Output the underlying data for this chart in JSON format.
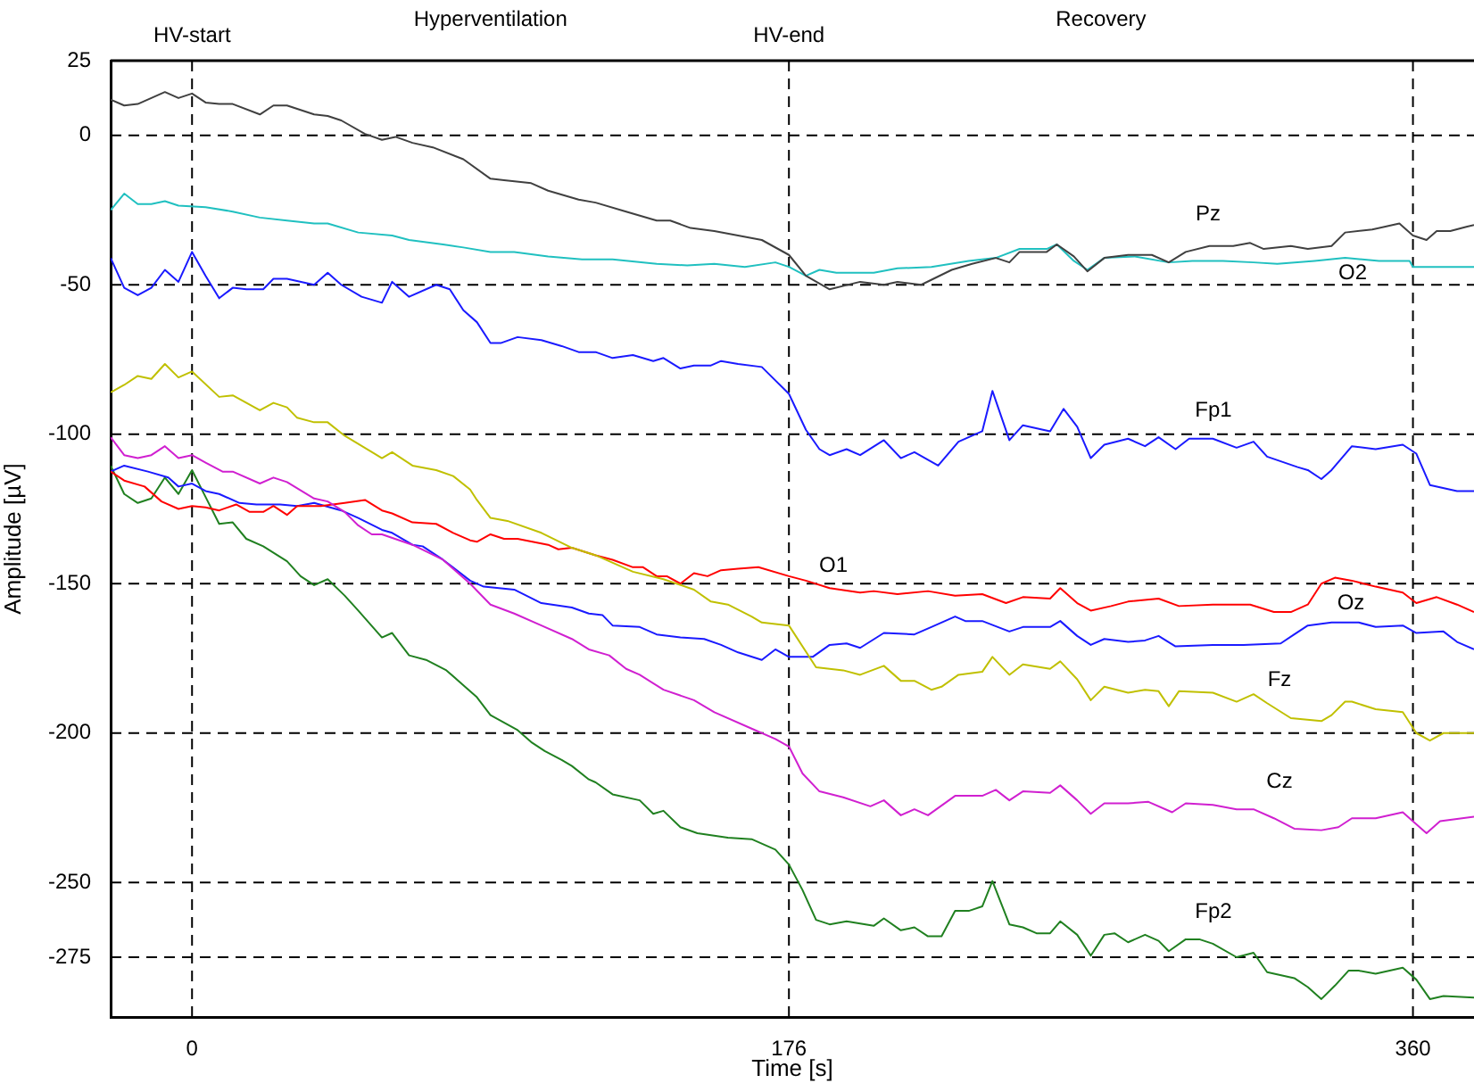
{
  "chart_data": {
    "type": "line",
    "xlabel": "Time [s]",
    "ylabel": "Amplitude [µV]",
    "xlim": [
      -24,
      378
    ],
    "xticks": [
      0,
      176,
      360
    ],
    "ylim": [
      -295,
      25
    ],
    "yticks": [
      25,
      0,
      -50,
      -100,
      -150,
      -200,
      -250,
      -275
    ],
    "grid": "y",
    "legend": false,
    "marker": "none",
    "line_style": "solid",
    "ref_lines": [
      {
        "axis": "x",
        "value": 0,
        "label": "HV-start",
        "line_style": "dashed"
      },
      {
        "axis": "x",
        "value": 176,
        "label": "HV-end",
        "line_style": "dashed"
      },
      {
        "axis": "x",
        "value": 360,
        "line_style": "dashed"
      }
    ],
    "annotations": [
      "Hyperventilation",
      "Recovery"
    ],
    "series": [
      {
        "name": "Pz",
        "color": "#404040",
        "x": [
          -24,
          -20,
          -16,
          -8,
          -4,
          0,
          4,
          8,
          12,
          20,
          24,
          28,
          36,
          40,
          44,
          51,
          56,
          60,
          65,
          71,
          80,
          88,
          92,
          100,
          105,
          114,
          119,
          128,
          137,
          141,
          147,
          154,
          168,
          176,
          181,
          188,
          197,
          204,
          208,
          215,
          224,
          230,
          237,
          241,
          244,
          252,
          255,
          260,
          264,
          269,
          276,
          283,
          288,
          293,
          300,
          307,
          312,
          316,
          324,
          329,
          336,
          340,
          348,
          356,
          360,
          364,
          367,
          371,
          376,
          378
        ],
        "values": [
          12,
          10,
          10.5,
          14.5,
          12.5,
          14,
          11,
          10.5,
          10.5,
          7,
          10,
          10,
          7,
          6.5,
          5,
          0.5,
          -1.5,
          -0.5,
          -2.5,
          -4,
          -8,
          -14.5,
          -15,
          -16,
          -18.5,
          -21.5,
          -22.5,
          -25.5,
          -28.5,
          -28.5,
          -31,
          -32,
          -35,
          -40,
          -47,
          -51.5,
          -49,
          -50,
          -49,
          -50,
          -45,
          -43,
          -41,
          -42.5,
          -39,
          -39,
          -36.5,
          -40.5,
          -45.5,
          -41,
          -40,
          -40,
          -42.5,
          -39,
          -37,
          -37,
          -36,
          -38,
          -37,
          -38,
          -37,
          -32.5,
          -31.5,
          -29.5,
          -33.5,
          -35,
          -32,
          -32,
          -30.5,
          -30
        ]
      },
      {
        "name": "O2",
        "color": "#20c0c0",
        "x": [
          -24,
          -20,
          -16,
          -12,
          -8,
          -4,
          4,
          12,
          20,
          28,
          36,
          40,
          49,
          59,
          64,
          74,
          80,
          88,
          95,
          105,
          115,
          124,
          137,
          146,
          154,
          163,
          172,
          176,
          181,
          185,
          190,
          201,
          208,
          218,
          229,
          237,
          244,
          252,
          255,
          260,
          264,
          269,
          278,
          288,
          295,
          304,
          313,
          320,
          331,
          340,
          350,
          359,
          360,
          368,
          378
        ],
        "values": [
          -25,
          -19.5,
          -23,
          -23,
          -22,
          -23.5,
          -24,
          -25.5,
          -27.5,
          -28.5,
          -29.5,
          -29.5,
          -32.5,
          -33.5,
          -35,
          -36.5,
          -37.5,
          -39,
          -39,
          -40.5,
          -41.5,
          -41.5,
          -43,
          -43.5,
          -43,
          -44,
          -42.5,
          -44,
          -47,
          -45,
          -46,
          -46,
          -44.5,
          -44,
          -42,
          -41,
          -38,
          -38,
          -36.5,
          -42,
          -45,
          -41,
          -40.5,
          -42.5,
          -42,
          -42,
          -42.5,
          -43,
          -42,
          -41,
          -42,
          -42,
          -44,
          -44,
          -44
        ]
      },
      {
        "name": "Fp1",
        "color": "#1a1aff",
        "x": [
          -24,
          -20,
          -16,
          -12,
          -8,
          -4,
          0,
          4,
          8,
          12,
          16,
          21,
          24,
          28,
          36,
          40,
          44,
          50,
          56,
          59,
          64,
          72,
          76,
          80,
          84,
          88,
          91,
          96,
          103,
          109,
          114,
          119,
          124,
          130,
          136,
          139,
          144,
          148,
          153,
          156,
          161,
          168,
          176,
          181,
          185,
          188,
          193,
          197,
          204,
          209,
          213,
          220,
          226,
          233,
          236,
          241,
          245,
          253,
          257,
          261,
          265,
          269,
          276,
          281,
          285,
          290,
          294,
          301,
          308,
          313,
          317,
          326,
          329,
          333,
          336,
          342,
          349,
          357,
          361,
          365,
          373,
          378
        ],
        "values": [
          -41,
          -51,
          -53.5,
          -51,
          -45,
          -49,
          -39,
          -47,
          -54.5,
          -51,
          -51.5,
          -51.5,
          -48,
          -48,
          -50,
          -46,
          -50,
          -54,
          -56,
          -49,
          -54,
          -50,
          -51.5,
          -58.5,
          -62.5,
          -69.5,
          -69.5,
          -67.5,
          -68.5,
          -70.5,
          -72.5,
          -72.5,
          -74.5,
          -73.5,
          -75.5,
          -74.5,
          -78,
          -77,
          -77,
          -75.5,
          -76.5,
          -77.5,
          -86.5,
          -98.5,
          -105,
          -107,
          -105,
          -107,
          -102,
          -108,
          -106,
          -110.5,
          -102.5,
          -99,
          -85.5,
          -102,
          -97,
          -99,
          -91.5,
          -97.5,
          -108,
          -103.5,
          -101.5,
          -104,
          -101,
          -105,
          -101.5,
          -101.5,
          -104.5,
          -102.5,
          -107.5,
          -111,
          -112,
          -115,
          -112,
          -104,
          -105,
          -103.5,
          -106.5,
          -117,
          -119,
          -119
        ]
      },
      {
        "name": "Fz",
        "color": "#c0c000",
        "x": [
          -24,
          -20,
          -16,
          -12,
          -8,
          -4,
          0,
          8,
          12,
          20,
          24,
          28,
          31,
          36,
          40,
          45,
          56,
          59,
          65,
          72,
          77,
          82,
          84,
          88,
          93,
          103,
          112,
          119,
          130,
          139,
          148,
          153,
          158,
          165,
          168,
          176,
          184,
          192,
          197,
          204,
          209,
          213,
          218,
          221,
          226,
          233,
          236,
          241,
          245,
          253,
          256,
          261,
          265,
          269,
          276,
          281,
          285,
          288,
          291,
          301,
          308,
          313,
          317,
          324,
          333,
          336,
          340,
          342,
          349,
          357,
          361,
          365,
          369,
          378
        ],
        "values": [
          -86,
          -83.5,
          -80.5,
          -81.5,
          -76.5,
          -81,
          -79,
          -87.5,
          -87,
          -92,
          -89.5,
          -91,
          -94.5,
          -96,
          -96,
          -100.5,
          -108,
          -106,
          -110.5,
          -112,
          -114,
          -118.5,
          -122,
          -128,
          -129,
          -133,
          -138,
          -140.5,
          -146,
          -148.5,
          -152,
          -156,
          -157,
          -161,
          -163,
          -164,
          -178,
          -179,
          -180.5,
          -177.5,
          -182.5,
          -182.5,
          -185.5,
          -184.5,
          -180.5,
          -179.5,
          -174.5,
          -180.5,
          -177,
          -178.5,
          -176,
          -182,
          -189,
          -184.5,
          -186.5,
          -185.5,
          -186,
          -191,
          -186,
          -186.5,
          -189.5,
          -187,
          -190,
          -195,
          -196,
          -194,
          -189.5,
          -189.5,
          -192,
          -193,
          -200,
          -202.5,
          -200,
          -200
        ]
      },
      {
        "name": "Cz",
        "color": "#d020d0",
        "x": [
          -24,
          -20,
          -16,
          -12,
          -8,
          -4,
          0,
          4,
          9,
          12,
          20,
          24,
          28,
          36,
          40,
          45,
          49,
          53,
          56,
          65,
          74,
          82,
          88,
          95,
          103,
          112,
          117,
          123,
          128,
          132,
          139,
          148,
          154,
          165,
          172,
          176,
          180,
          185,
          192,
          200,
          204,
          209,
          213,
          217,
          225,
          233,
          237,
          241,
          245,
          253,
          256,
          261,
          265,
          269,
          276,
          282,
          289,
          293,
          301,
          308,
          313,
          319,
          325,
          333,
          338,
          342,
          349,
          357,
          361,
          364,
          368,
          378
        ],
        "values": [
          -101,
          -107,
          -108,
          -107,
          -104,
          -108,
          -107,
          -109.5,
          -112.5,
          -112.5,
          -116.5,
          -114.5,
          -116,
          -121.5,
          -122.5,
          -126,
          -130.5,
          -133.5,
          -133.5,
          -137,
          -142,
          -150,
          -157,
          -160,
          -164,
          -168.5,
          -172,
          -174,
          -178.5,
          -180.5,
          -185.5,
          -189,
          -193,
          -198.5,
          -202,
          -204.5,
          -213.5,
          -219.5,
          -221.5,
          -224.5,
          -222.5,
          -227.5,
          -225.5,
          -227.5,
          -221,
          -221,
          -219,
          -222.5,
          -219.5,
          -220,
          -217.5,
          -222.5,
          -227,
          -223.5,
          -223.5,
          -223,
          -226.5,
          -223.5,
          -224,
          -225.5,
          -225.5,
          -228.5,
          -232,
          -232.5,
          -231.5,
          -228.5,
          -228.5,
          -226.5,
          -230.5,
          -233.5,
          -229.5,
          -228
        ]
      },
      {
        "name": "O1",
        "color": "#ff0000",
        "x": [
          -24,
          -20,
          -14,
          -9,
          -4,
          0,
          4,
          8,
          13,
          17,
          21,
          24,
          28,
          31,
          38,
          45,
          51,
          56,
          59,
          65,
          72,
          77,
          82,
          84,
          88,
          92,
          96,
          105,
          108,
          112,
          119,
          124,
          130,
          133,
          137,
          140,
          144,
          148,
          152,
          156,
          161,
          167,
          176,
          181,
          188,
          197,
          201,
          208,
          217,
          225,
          233,
          240,
          245,
          253,
          256,
          261,
          265,
          271,
          276,
          285,
          291,
          301,
          312,
          319,
          324,
          329,
          333,
          337,
          342,
          349,
          357,
          361,
          367,
          373,
          378
        ],
        "values": [
          -112.5,
          -115.5,
          -117.5,
          -122.5,
          -125,
          -124,
          -124.5,
          -125.5,
          -123.5,
          -126,
          -126,
          -124,
          -127,
          -124,
          -124,
          -123,
          -122,
          -125.5,
          -126.5,
          -129.5,
          -130,
          -133,
          -135.5,
          -136,
          -133.5,
          -135,
          -135,
          -137,
          -138.5,
          -138,
          -140.5,
          -142,
          -144.5,
          -144.5,
          -147.5,
          -147.5,
          -150,
          -146.5,
          -147.5,
          -145.5,
          -145,
          -144.5,
          -147.5,
          -149,
          -151.5,
          -153,
          -152.5,
          -153.5,
          -152.5,
          -154,
          -153.5,
          -156.5,
          -154.5,
          -155,
          -151.5,
          -156.5,
          -159,
          -157.5,
          -156,
          -155,
          -157.5,
          -157,
          -157,
          -159.5,
          -159.5,
          -157,
          -150,
          -148,
          -149,
          -151,
          -153,
          -156.5,
          -154.5,
          -157,
          -159.5
        ]
      },
      {
        "name": "Oz",
        "color": "#1a1aff",
        "x": [
          -24,
          -20,
          -13,
          -7,
          -4,
          0,
          4,
          8,
          14,
          19,
          26,
          31,
          36,
          44,
          49,
          56,
          59,
          65,
          68,
          74,
          82,
          86,
          95,
          103,
          112,
          117,
          121,
          124,
          132,
          137,
          144,
          151,
          156,
          161,
          168,
          172,
          176,
          183,
          188,
          193,
          197,
          204,
          213,
          218,
          225,
          228,
          233,
          241,
          245,
          253,
          256,
          261,
          265,
          269,
          276,
          281,
          285,
          290,
          301,
          310,
          321,
          325,
          329,
          336,
          344,
          349,
          357,
          361,
          369,
          373,
          378
        ],
        "values": [
          -112.5,
          -110.5,
          -112.5,
          -114.5,
          -117.5,
          -116.5,
          -119,
          -120,
          -123,
          -123.5,
          -123.5,
          -124,
          -123,
          -125.5,
          -128,
          -132,
          -133,
          -137,
          -137.5,
          -142,
          -149,
          -151,
          -152,
          -156.5,
          -158,
          -160,
          -160.5,
          -164,
          -164.5,
          -167,
          -168,
          -168.5,
          -170.5,
          -173,
          -175.5,
          -172,
          -174.5,
          -174.5,
          -170.5,
          -170,
          -171.5,
          -166.5,
          -167,
          -164.5,
          -161,
          -162.5,
          -162.5,
          -166,
          -164.5,
          -164.5,
          -162.5,
          -167.5,
          -170.5,
          -168.5,
          -169.5,
          -169,
          -167.5,
          -171,
          -170.5,
          -170.5,
          -170,
          -167,
          -164,
          -163,
          -163,
          -164.5,
          -164,
          -166.5,
          -166,
          -169.5,
          -172
        ]
      },
      {
        "name": "Fp2",
        "color": "#208020",
        "x": [
          -24,
          -20,
          -16,
          -12,
          -8,
          -4,
          0,
          4,
          8,
          12,
          16,
          21,
          28,
          32,
          36,
          40,
          45,
          49,
          56,
          59,
          64,
          69,
          75,
          81,
          84,
          88,
          96,
          100,
          104,
          109,
          112,
          117,
          119,
          124,
          132,
          136,
          139,
          144,
          149,
          158,
          165,
          172,
          176,
          180,
          184,
          188,
          193,
          201,
          204,
          209,
          213,
          217,
          221,
          225,
          229,
          233,
          236,
          241,
          245,
          249,
          253,
          256,
          261,
          265,
          269,
          272,
          276,
          281,
          285,
          288,
          293,
          297,
          301,
          308,
          313,
          317,
          325,
          329,
          333,
          337,
          341,
          344,
          349,
          357,
          361,
          365,
          369,
          378
        ],
        "values": [
          -110.5,
          -120,
          -123,
          -121.5,
          -114.5,
          -120,
          -112,
          -121,
          -130,
          -129.5,
          -135,
          -137.5,
          -142.5,
          -147.5,
          -150.5,
          -148.5,
          -154,
          -159,
          -168,
          -166.5,
          -174,
          -175.5,
          -179,
          -185,
          -188,
          -194,
          -199,
          -203,
          -206,
          -209,
          -211,
          -215.5,
          -216.5,
          -220.5,
          -222.5,
          -227,
          -226,
          -231.5,
          -233.5,
          -235,
          -235.5,
          -239,
          -244,
          -252.5,
          -262.5,
          -264,
          -263,
          -264.5,
          -262,
          -266,
          -265,
          -268,
          -268,
          -259.5,
          -259.5,
          -258,
          -249.5,
          -264,
          -265,
          -267,
          -267,
          -263,
          -267.5,
          -274.5,
          -267.5,
          -267,
          -270,
          -267.5,
          -269.5,
          -273,
          -269,
          -269,
          -270.5,
          -275,
          -273.5,
          -280,
          -282,
          -285,
          -289,
          -284.5,
          -279.5,
          -279.5,
          -280.5,
          -278.5,
          -282.5,
          -289,
          -288,
          -288.5
        ]
      }
    ]
  }
}
